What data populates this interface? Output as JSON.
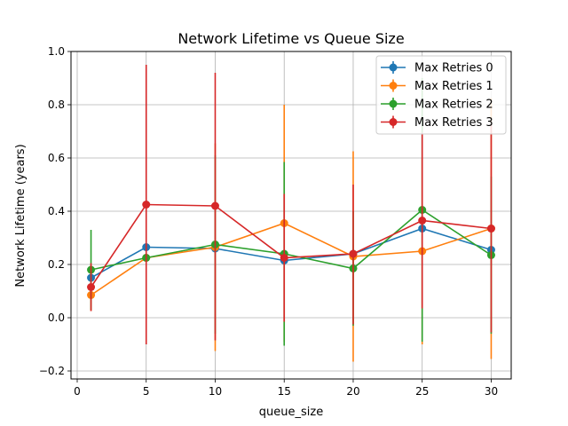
{
  "chart_data": {
    "type": "line",
    "title": "Network Lifetime vs Queue Size",
    "xlabel": "queue_size",
    "ylabel": "Network Lifetime (years)",
    "xlim": [
      -0.45,
      31.45
    ],
    "ylim": [
      -0.23,
      1.0
    ],
    "xticks": [
      0,
      5,
      10,
      15,
      20,
      25,
      30
    ],
    "yticks": [
      -0.2,
      0.0,
      0.2,
      0.4,
      0.6,
      0.8,
      1.0
    ],
    "grid": true,
    "legend_position": "upper right",
    "x": [
      1,
      5,
      10,
      15,
      20,
      25,
      30
    ],
    "series": [
      {
        "name": "Max Retries 0",
        "color": "#1f77b4",
        "values": [
          0.15,
          0.265,
          0.26,
          0.215,
          0.24,
          0.335,
          0.255
        ],
        "err_low": [
          0.15,
          0.265,
          0.26,
          0.215,
          0.24,
          0.335,
          0.255
        ],
        "err_high": [
          0.15,
          0.265,
          0.26,
          0.215,
          0.24,
          0.335,
          0.255
        ]
      },
      {
        "name": "Max Retries 1",
        "color": "#ff7f0e",
        "values": [
          0.085,
          0.225,
          0.265,
          0.355,
          0.23,
          0.25,
          0.335
        ],
        "err_low": [
          0.025,
          0.225,
          -0.125,
          -0.09,
          -0.165,
          -0.1,
          -0.155
        ],
        "err_high": [
          0.145,
          0.225,
          0.655,
          0.8,
          0.625,
          0.6,
          0.825
        ]
      },
      {
        "name": "Max Retries 2",
        "color": "#2ca02c",
        "values": [
          0.18,
          0.225,
          0.275,
          0.24,
          0.185,
          0.405,
          0.235
        ],
        "err_low": [
          0.03,
          0.225,
          -0.06,
          -0.105,
          -0.03,
          -0.09,
          -0.06
        ],
        "err_high": [
          0.33,
          0.225,
          0.61,
          0.585,
          0.4,
          0.9,
          0.53
        ]
      },
      {
        "name": "Max Retries 3",
        "color": "#d62728",
        "values": [
          0.115,
          0.425,
          0.42,
          0.225,
          0.24,
          0.365,
          0.335
        ],
        "err_low": [
          0.025,
          -0.1,
          -0.085,
          -0.015,
          -0.025,
          0.035,
          -0.055
        ],
        "err_high": [
          0.205,
          0.95,
          0.92,
          0.465,
          0.5,
          0.695,
          0.725
        ]
      }
    ]
  }
}
